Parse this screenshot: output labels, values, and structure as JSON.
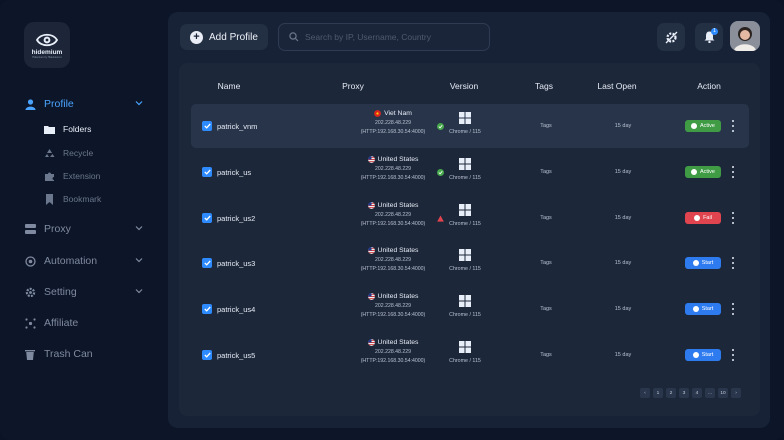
{
  "brand": {
    "logo_text": "hidemium",
    "logo_sub": "Hidemium by Hidemium.io"
  },
  "sidebar": {
    "items": [
      {
        "label": "Profile",
        "icon": "user-icon",
        "active": true
      },
      {
        "label": "Proxy",
        "icon": "server-icon"
      },
      {
        "label": "Automation",
        "icon": "automation-icon"
      },
      {
        "label": "Setting",
        "icon": "gear-icon"
      },
      {
        "label": "Affiliate",
        "icon": "affiliate-icon"
      },
      {
        "label": "Trash Can",
        "icon": "trash-icon"
      }
    ],
    "sub_items": [
      {
        "label": "Folders",
        "icon": "folder-icon",
        "active": true
      },
      {
        "label": "Recycle",
        "icon": "recycle-icon"
      },
      {
        "label": "Extension",
        "icon": "puzzle-icon"
      },
      {
        "label": "Bookmark",
        "icon": "bookmark-icon"
      }
    ]
  },
  "toolbar": {
    "add_label": "Add Profile",
    "search_placeholder": "Search by IP, Username, Country",
    "notification_count": "1"
  },
  "table": {
    "headers": {
      "name": "Name",
      "proxy": "Proxy",
      "version": "Version",
      "tags": "Tags",
      "last_open": "Last Open",
      "action": "Action"
    },
    "rows": [
      {
        "name": "patrick_vnm",
        "country": "Viet Nam",
        "ip": "202.228.48.229",
        "proxy": "(HTTP:192.168.30.54:4000)",
        "proxy_status": "ok",
        "version": "Chrome / 115",
        "tags": "Tags",
        "last_open": "15 day",
        "action": "Active",
        "action_color": "green"
      },
      {
        "name": "patrick_us",
        "country": "United States",
        "ip": "202.228.48.229",
        "proxy": "(HTTP:192.168.30.54:4000)",
        "proxy_status": "ok",
        "version": "Chrome / 115",
        "tags": "Tags",
        "last_open": "15 day",
        "action": "Active",
        "action_color": "green"
      },
      {
        "name": "patrick_us2",
        "country": "United States",
        "ip": "202.228.48.229",
        "proxy": "(HTTP:192.168.30.54:4000)",
        "proxy_status": "warn",
        "version": "Chrome / 115",
        "tags": "Tags",
        "last_open": "15 day",
        "action": "Fail",
        "action_color": "red"
      },
      {
        "name": "patrick_us3",
        "country": "United States",
        "ip": "202.228.48.229",
        "proxy": "(HTTP:192.168.30.54:4000)",
        "proxy_status": "none",
        "version": "Chrome / 115",
        "tags": "Tags",
        "last_open": "15 day",
        "action": "Start",
        "action_color": "blue"
      },
      {
        "name": "patrick_us4",
        "country": "United States",
        "ip": "202.228.48.229",
        "proxy": "(HTTP:192.168.30.54:4000)",
        "proxy_status": "none",
        "version": "Chrome / 115",
        "tags": "Tags",
        "last_open": "15 day",
        "action": "Start",
        "action_color": "blue"
      },
      {
        "name": "patrick_us5",
        "country": "United States",
        "ip": "202.228.48.229",
        "proxy": "(HTTP:192.168.30.54:4000)",
        "proxy_status": "none",
        "version": "Chrome / 115",
        "tags": "Tags",
        "last_open": "15 day",
        "action": "Start",
        "action_color": "blue"
      }
    ]
  },
  "pagination": {
    "pages": [
      "‹",
      "1",
      "2",
      "3",
      "4",
      "…",
      "10",
      "›"
    ],
    "current": "1"
  },
  "colors": {
    "accent": "#2e8bff",
    "active": "#3f9c45",
    "fail": "#e0444f",
    "start": "#2e7bf0"
  }
}
